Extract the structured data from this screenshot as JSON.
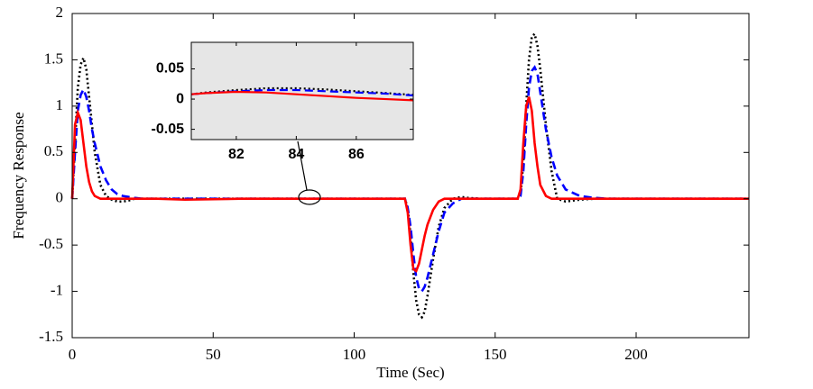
{
  "chart_data": [
    {
      "type": "line",
      "xlabel": "Time (Sec)",
      "ylabel": "Frequency Response",
      "xlim": [
        0,
        240
      ],
      "ylim": [
        -1.5,
        2
      ],
      "xticks": [
        0,
        50,
        100,
        150,
        200
      ],
      "yticks": [
        -1.5,
        -1,
        -0.5,
        0,
        0.5,
        1,
        1.5,
        2
      ],
      "x": [
        0,
        1,
        2,
        3,
        4,
        5,
        6,
        7,
        8,
        10,
        12,
        14,
        16,
        18,
        20,
        22,
        25,
        30,
        40,
        60,
        80,
        100,
        115,
        118,
        119,
        120,
        121,
        122,
        123,
        124,
        125,
        126,
        128,
        130,
        132,
        135,
        138,
        140,
        145,
        150,
        155,
        158,
        159,
        160,
        161,
        162,
        163,
        164,
        165,
        166,
        168,
        170,
        172,
        175,
        180,
        185,
        190,
        200,
        240
      ],
      "series": [
        {
          "color": "#000000",
          "line_style": "dotted",
          "values": [
            0,
            0.6,
            1.2,
            1.45,
            1.52,
            1.4,
            1.1,
            0.8,
            0.5,
            0.15,
            0.03,
            -0.01,
            -0.03,
            -0.03,
            -0.02,
            0,
            0,
            0,
            0,
            0,
            0,
            0,
            0,
            0,
            -0.1,
            -0.4,
            -0.8,
            -1.1,
            -1.25,
            -1.28,
            -1.22,
            -1.05,
            -0.65,
            -0.3,
            -0.1,
            0,
            0.02,
            0.01,
            0,
            0,
            0,
            0,
            0.05,
            0.4,
            1.0,
            1.5,
            1.75,
            1.78,
            1.65,
            1.4,
            0.8,
            0.3,
            0.0,
            -0.03,
            -0.01,
            0,
            0,
            0,
            0
          ]
        },
        {
          "color": "#0000ff",
          "line_style": "dashed",
          "values": [
            0,
            0.5,
            0.95,
            1.12,
            1.18,
            1.1,
            0.95,
            0.75,
            0.6,
            0.35,
            0.2,
            0.1,
            0.05,
            0.03,
            0.02,
            0.01,
            0,
            0,
            0,
            0,
            0,
            0,
            0,
            0,
            -0.1,
            -0.3,
            -0.6,
            -0.85,
            -0.97,
            -1.0,
            -0.95,
            -0.85,
            -0.6,
            -0.35,
            -0.15,
            -0.05,
            0,
            0,
            0,
            0,
            0,
            0,
            0.03,
            0.3,
            0.8,
            1.2,
            1.38,
            1.42,
            1.35,
            1.15,
            0.75,
            0.45,
            0.25,
            0.1,
            0.03,
            0.01,
            0,
            0,
            0
          ]
        },
        {
          "color": "#ff0000",
          "line_style": "solid",
          "values": [
            0,
            0.8,
            0.93,
            0.85,
            0.6,
            0.35,
            0.18,
            0.08,
            0.03,
            0,
            0,
            0,
            0,
            0,
            0,
            0,
            0,
            0,
            -0.01,
            0,
            0,
            0,
            0,
            0,
            -0.15,
            -0.5,
            -0.76,
            -0.78,
            -0.7,
            -0.55,
            -0.4,
            -0.28,
            -0.12,
            -0.03,
            0,
            0,
            0,
            0,
            0,
            0,
            0,
            0,
            0.1,
            0.6,
            1.0,
            1.1,
            0.95,
            0.6,
            0.35,
            0.15,
            0.03,
            0,
            0,
            0,
            0,
            0,
            0,
            0,
            0
          ]
        }
      ]
    },
    {
      "type": "line",
      "background": "#e6e6e6",
      "xlim": [
        80.5,
        87.9
      ],
      "ylim": [
        -0.067,
        0.094
      ],
      "xticks": [
        82,
        84,
        86
      ],
      "yticks": [
        -0.05,
        0,
        0.05
      ],
      "x": [
        80.5,
        81,
        82,
        83,
        84,
        85,
        86,
        87,
        87.9
      ],
      "series": [
        {
          "color": "#000000",
          "line_style": "dotted",
          "values": [
            0.008,
            0.011,
            0.015,
            0.018,
            0.018,
            0.016,
            0.013,
            0.01,
            0.007
          ]
        },
        {
          "color": "#0000ff",
          "line_style": "dashed",
          "values": [
            0.008,
            0.01,
            0.013,
            0.015,
            0.015,
            0.013,
            0.011,
            0.009,
            0.006
          ]
        },
        {
          "color": "#ff0000",
          "line_style": "solid",
          "values": [
            0.008,
            0.01,
            0.012,
            0.011,
            0.008,
            0.005,
            0.002,
            0,
            -0.002
          ]
        }
      ]
    }
  ]
}
